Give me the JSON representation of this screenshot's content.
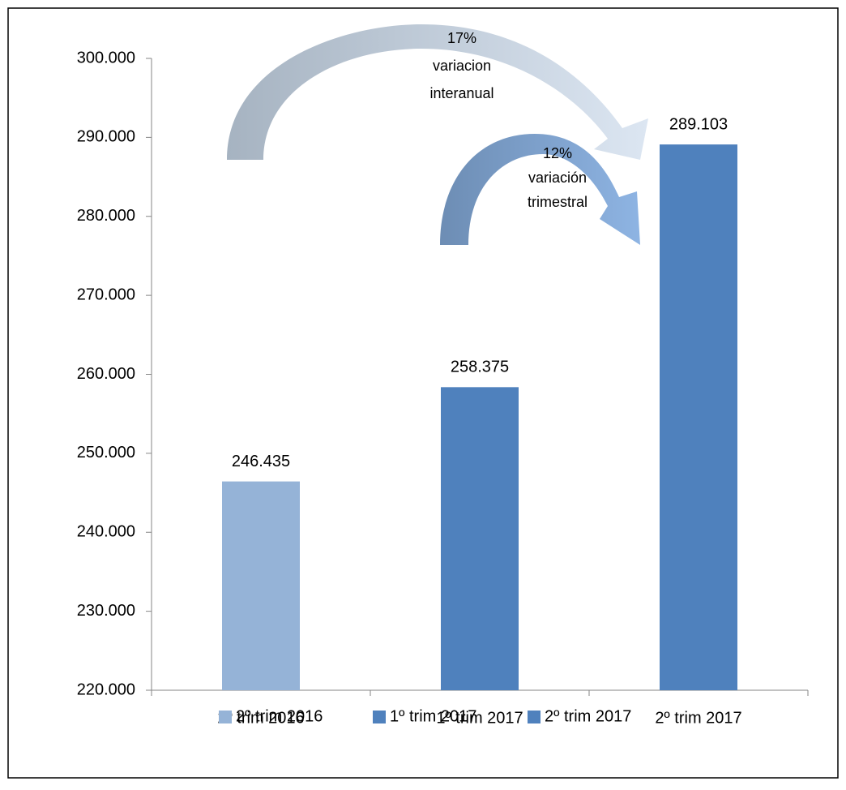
{
  "chart_data": {
    "type": "bar",
    "categories": [
      "2º trim 2016",
      "1º trim 2017",
      "2º trim 2017"
    ],
    "values": [
      246435,
      258375,
      289103
    ],
    "value_labels": [
      "246.435",
      "258.375",
      "289.103"
    ],
    "colors": [
      "#95b3d7",
      "#4f81bd",
      "#4f81bd"
    ],
    "ylim": [
      220000,
      300000
    ],
    "yticks": [
      {
        "value": 220000,
        "label": "220.000"
      },
      {
        "value": 230000,
        "label": "230.000"
      },
      {
        "value": 240000,
        "label": "240.000"
      },
      {
        "value": 250000,
        "label": "250.000"
      },
      {
        "value": 260000,
        "label": "260.000"
      },
      {
        "value": 270000,
        "label": "270.000"
      },
      {
        "value": 280000,
        "label": "280.000"
      },
      {
        "value": 290000,
        "label": "290.000"
      },
      {
        "value": 300000,
        "label": "300.000"
      }
    ],
    "legend": "bottom",
    "annotations": [
      {
        "lines": [
          "17%",
          "variacion",
          "interanual"
        ]
      },
      {
        "lines": [
          "12%",
          "variación",
          "trimestral"
        ]
      }
    ]
  }
}
